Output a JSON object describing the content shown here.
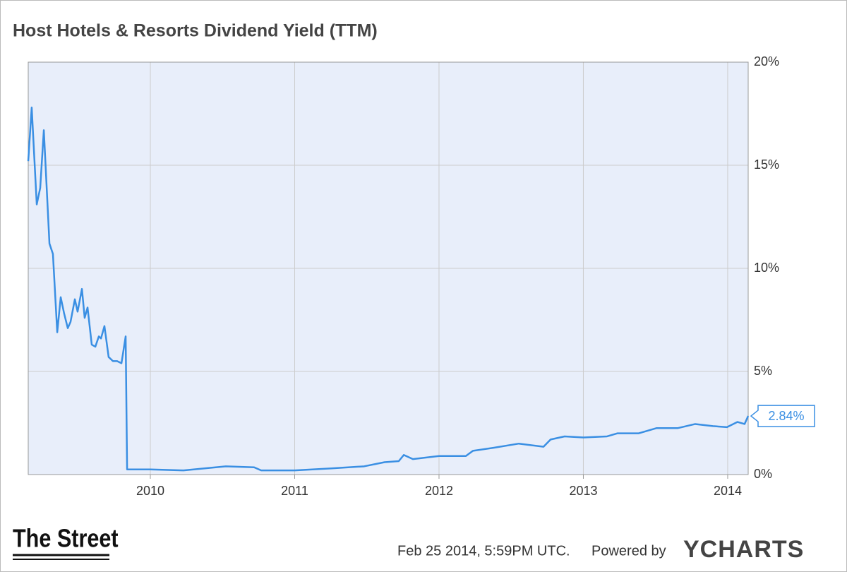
{
  "chart_data": {
    "type": "line",
    "title": "Host Hotels & Resorts Dividend Yield (TTM)",
    "x": [
      2009.154,
      2009.178,
      2009.213,
      2009.237,
      2009.262,
      2009.301,
      2009.325,
      2009.355,
      2009.379,
      2009.403,
      2009.428,
      2009.447,
      2009.477,
      2009.496,
      2009.526,
      2009.545,
      2009.565,
      2009.594,
      2009.619,
      2009.643,
      2009.658,
      2009.682,
      2009.711,
      2009.741,
      2009.77,
      2009.8,
      2009.829,
      2009.839,
      2010.0,
      2010.23,
      2010.523,
      2010.719,
      2010.768,
      2011.0,
      2011.257,
      2011.482,
      2011.623,
      2011.721,
      2011.756,
      2011.819,
      2012.0,
      2012.186,
      2012.235,
      2012.381,
      2012.553,
      2012.724,
      2012.773,
      2012.87,
      2013.0,
      2013.164,
      2013.237,
      2013.384,
      2013.506,
      2013.653,
      2013.775,
      2013.897,
      2013.995,
      2014.068,
      2014.117,
      2014.142
    ],
    "series": [
      {
        "name": "Dividend Yield (TTM)",
        "color": "#3a8fe3",
        "values": [
          15.2,
          17.8,
          13.1,
          13.9,
          16.7,
          11.2,
          10.7,
          6.9,
          8.6,
          7.8,
          7.1,
          7.4,
          8.5,
          7.9,
          9.0,
          7.6,
          8.1,
          6.3,
          6.2,
          6.7,
          6.6,
          7.2,
          5.7,
          5.5,
          5.5,
          5.4,
          6.7,
          0.25,
          0.25,
          0.2,
          0.4,
          0.35,
          0.2,
          0.2,
          0.3,
          0.4,
          0.6,
          0.65,
          0.95,
          0.75,
          0.9,
          0.9,
          1.15,
          1.3,
          1.5,
          1.35,
          1.7,
          1.85,
          1.8,
          1.85,
          2.0,
          2.0,
          2.25,
          2.25,
          2.45,
          2.35,
          2.3,
          2.55,
          2.45,
          2.84
        ]
      }
    ],
    "last_value_label": "2.84%",
    "xlim": [
      2009.154,
      2014.142
    ],
    "xticks": [
      2010,
      2011,
      2012,
      2013,
      2014
    ],
    "ylim": [
      0,
      20
    ],
    "yticks": [
      {
        "value": 0,
        "label": "0%"
      },
      {
        "value": 5,
        "label": "5%"
      },
      {
        "value": 10,
        "label": "10%"
      },
      {
        "value": 15,
        "label": "15%"
      },
      {
        "value": 20,
        "label": "20%"
      }
    ],
    "grid": true,
    "source_logo": "The Street",
    "timestamp": "Feb 25 2014, 5:59PM UTC.",
    "powered_by": "Powered by",
    "brand": "YCHARTS"
  }
}
